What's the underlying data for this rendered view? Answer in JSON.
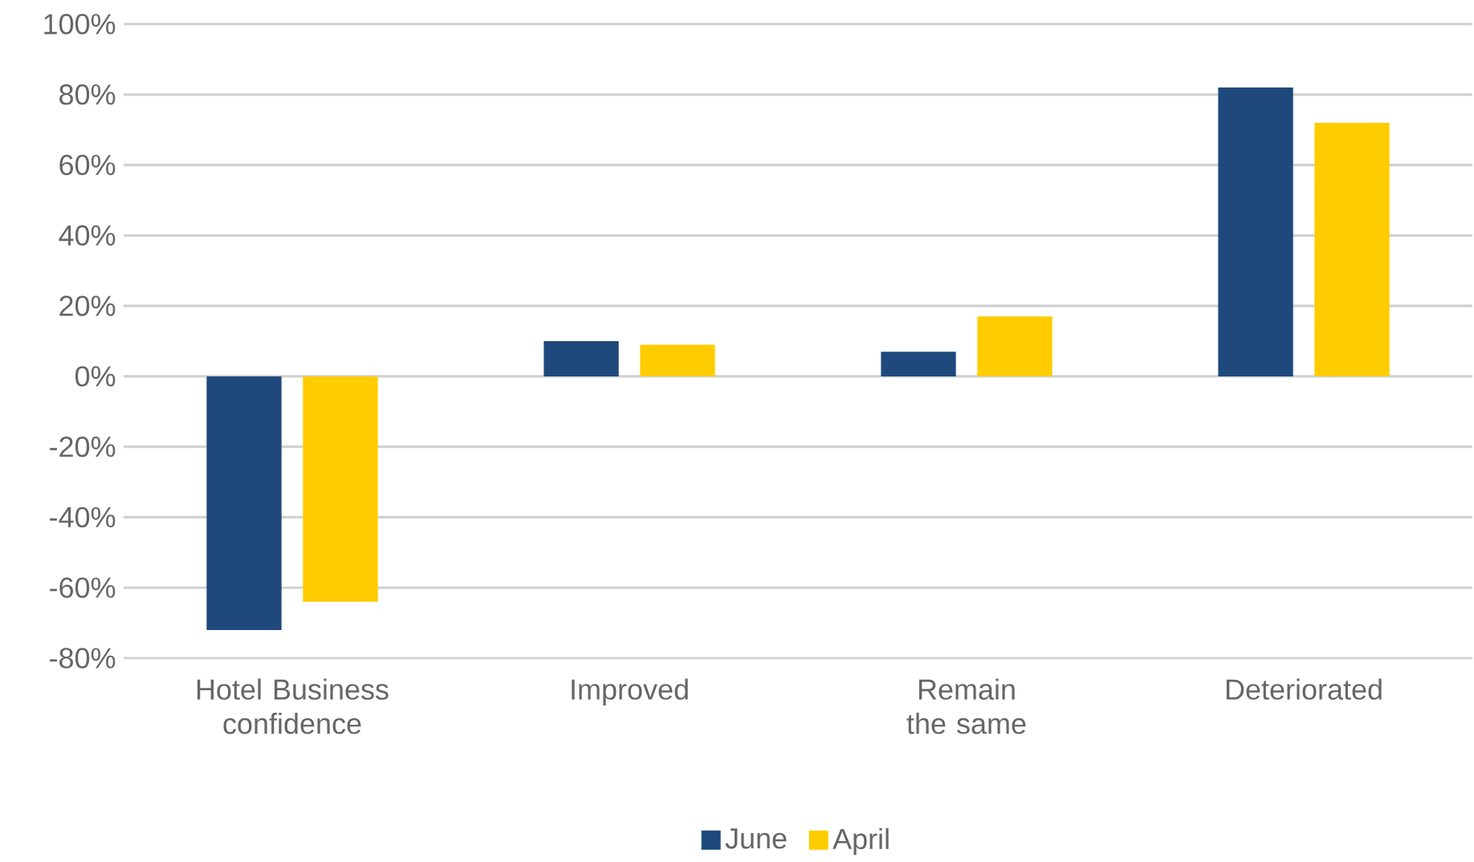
{
  "chart_data": {
    "type": "bar",
    "categories": [
      "Hotel Business confidence",
      "Improved",
      "Remain the same",
      "Deteriorated"
    ],
    "series": [
      {
        "name": "June",
        "color": "#1f497d",
        "values": [
          -72,
          10,
          7,
          82
        ]
      },
      {
        "name": "April",
        "color": "#ffcc00",
        "values": [
          -64,
          9,
          17,
          72
        ]
      }
    ],
    "ylim": [
      -80,
      100
    ],
    "yticks": [
      {
        "value": -80,
        "label": "-80%"
      },
      {
        "value": -60,
        "label": "-60%"
      },
      {
        "value": -40,
        "label": "-40%"
      },
      {
        "value": -20,
        "label": "-20%"
      },
      {
        "value": 0,
        "label": "0%"
      },
      {
        "value": 20,
        "label": "20%"
      },
      {
        "value": 40,
        "label": "40%"
      },
      {
        "value": 60,
        "label": "60%"
      },
      {
        "value": 80,
        "label": "80%"
      },
      {
        "value": 100,
        "label": "100%"
      }
    ],
    "grid": "y",
    "legend": "bottom"
  }
}
